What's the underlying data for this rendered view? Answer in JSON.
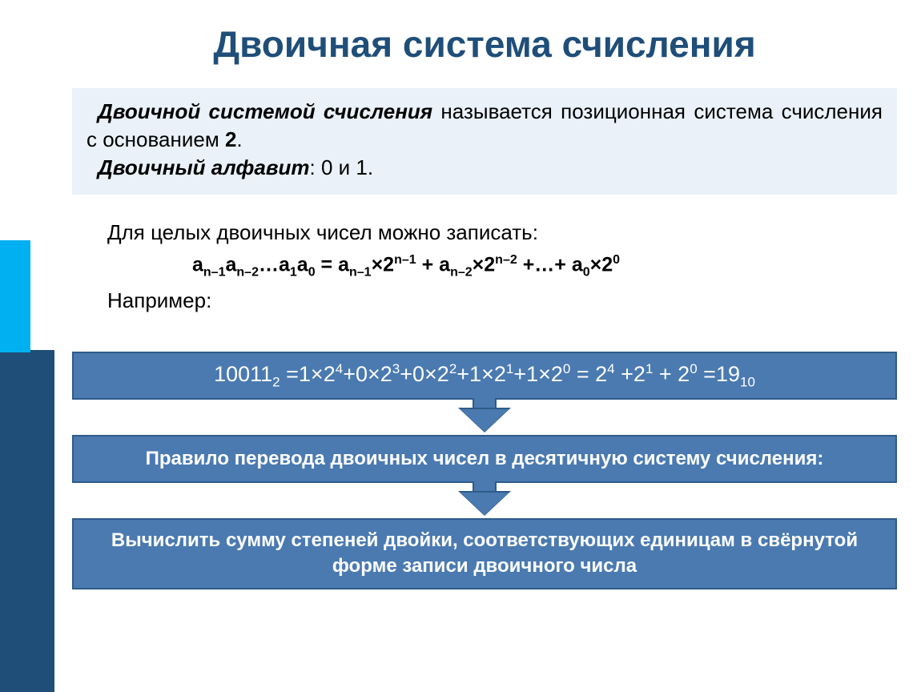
{
  "colors": {
    "title": "#1f4e79",
    "defbox_bg": "#eaf1f8",
    "banner_bg": "#4a7ab0",
    "banner_border": "#2f5b89",
    "left_cyan": "#00b0f0",
    "left_blue": "#1f4e79",
    "text": "#000000",
    "banner_text": "#ffffff"
  },
  "title": "Двоичная система счисления",
  "def": {
    "term1": "Двоичной системой счисления",
    "rest1": " называется позиционная система счисления с основанием ",
    "base": "2",
    "dot": ".",
    "term2": "Двоичный алфавит",
    "rest2": ": 0 и 1."
  },
  "mid": {
    "line1": "Для целых двоичных чисел можно записать:",
    "example_label": "Например:"
  },
  "formula": {
    "lhs_parts": [
      "a",
      "n–1",
      "a",
      "n–2",
      "…a",
      "1",
      "a",
      "0"
    ],
    "eq": " = ",
    "rhs_parts": [
      "a",
      "n–1",
      "×2",
      "n–1",
      " + a",
      "n–2",
      "×2",
      "n–2",
      " +…+ a",
      "0",
      "×2",
      "0"
    ]
  },
  "banner1": {
    "num": "10011",
    "num_sub": "2",
    "seq": "  =1×2",
    "p4": "4",
    "s1": "+0×2",
    "p3": "3",
    "s2": "+0×2",
    "p2": "2",
    "s3": "+1×2",
    "p1": "1",
    "s4": "+1×2",
    "p0": "0",
    "s5": "  = 2",
    "q4": "4",
    "s6": " +2",
    "q1": "1",
    "s7": " + 2",
    "q0": "0",
    "s8": " =19",
    "res_sub": "10"
  },
  "banner2": "Правило перевода двоичных чисел в десятичную систему счисления:",
  "banner3": "Вычислить сумму степеней двойки, соответствующих единицам в свёрнутой форме записи двоичного числа"
}
